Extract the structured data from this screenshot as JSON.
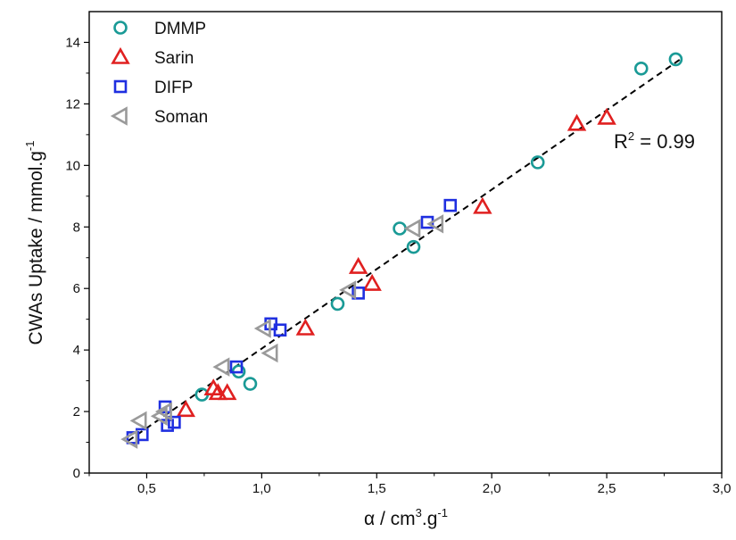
{
  "chart_data": {
    "type": "scatter",
    "xlabel": "α / cm³.g⁻¹",
    "ylabel": "CWAs Uptake / mmol.g⁻¹",
    "xlabel_main": "α / cm",
    "xlabel_sup1": "3",
    "xlabel_mid": ".g",
    "xlabel_sup2": "-1",
    "ylabel_main": "CWAs Uptake / mmol.g",
    "ylabel_sup": "-1",
    "xlim": [
      0.25,
      3.0
    ],
    "ylim": [
      0,
      15
    ],
    "x_ticks": [
      0.5,
      1.0,
      1.5,
      2.0,
      2.5,
      3.0
    ],
    "x_tick_labels": [
      "0,5",
      "1,0",
      "1,5",
      "2,0",
      "2,5",
      "3,0"
    ],
    "y_ticks": [
      0,
      2,
      4,
      6,
      8,
      10,
      12,
      14
    ],
    "y_tick_labels": [
      "0",
      "2",
      "4",
      "6",
      "8",
      "10",
      "12",
      "14"
    ],
    "grid": false,
    "legend_position": "top-left",
    "fit_line": {
      "x": [
        0.42,
        2.82
      ],
      "y": [
        1.05,
        13.45
      ],
      "style": "dashed",
      "color": "#000000"
    },
    "annotation": {
      "text_main": "R",
      "text_sup": "2",
      "text_rest": " = 0.99",
      "x": 2.35,
      "y": 10.9
    },
    "series": [
      {
        "name": "DMMP",
        "marker": "circle",
        "color": "#1a9a96",
        "points": [
          [
            0.74,
            2.55
          ],
          [
            0.9,
            3.3
          ],
          [
            0.95,
            2.9
          ],
          [
            1.33,
            5.5
          ],
          [
            1.6,
            7.95
          ],
          [
            1.66,
            7.35
          ],
          [
            2.2,
            10.1
          ],
          [
            2.65,
            13.15
          ],
          [
            2.8,
            13.45
          ]
        ]
      },
      {
        "name": "Sarin",
        "marker": "triangle-up",
        "color": "#e02020",
        "points": [
          [
            0.67,
            2.05
          ],
          [
            0.79,
            2.75
          ],
          [
            0.81,
            2.6
          ],
          [
            0.85,
            2.6
          ],
          [
            1.19,
            4.7
          ],
          [
            1.42,
            6.7
          ],
          [
            1.48,
            6.15
          ],
          [
            1.96,
            8.65
          ],
          [
            2.37,
            11.35
          ],
          [
            2.5,
            11.55
          ]
        ]
      },
      {
        "name": "DIFP",
        "marker": "square",
        "color": "#1f2fe0",
        "points": [
          [
            0.44,
            1.15
          ],
          [
            0.48,
            1.25
          ],
          [
            0.58,
            2.15
          ],
          [
            0.59,
            1.55
          ],
          [
            0.62,
            1.65
          ],
          [
            0.89,
            3.45
          ],
          [
            1.04,
            4.85
          ],
          [
            1.08,
            4.65
          ],
          [
            1.42,
            5.85
          ],
          [
            1.72,
            8.15
          ],
          [
            1.82,
            8.7
          ]
        ]
      },
      {
        "name": "Soman",
        "marker": "triangle-left",
        "color": "#9a9a9a",
        "points": [
          [
            0.43,
            1.1
          ],
          [
            0.47,
            1.7
          ],
          [
            0.56,
            1.85
          ],
          [
            0.58,
            2.0
          ],
          [
            0.83,
            3.45
          ],
          [
            1.01,
            4.7
          ],
          [
            1.04,
            3.9
          ],
          [
            1.38,
            5.95
          ],
          [
            1.66,
            7.95
          ],
          [
            1.76,
            8.1
          ]
        ]
      }
    ]
  }
}
